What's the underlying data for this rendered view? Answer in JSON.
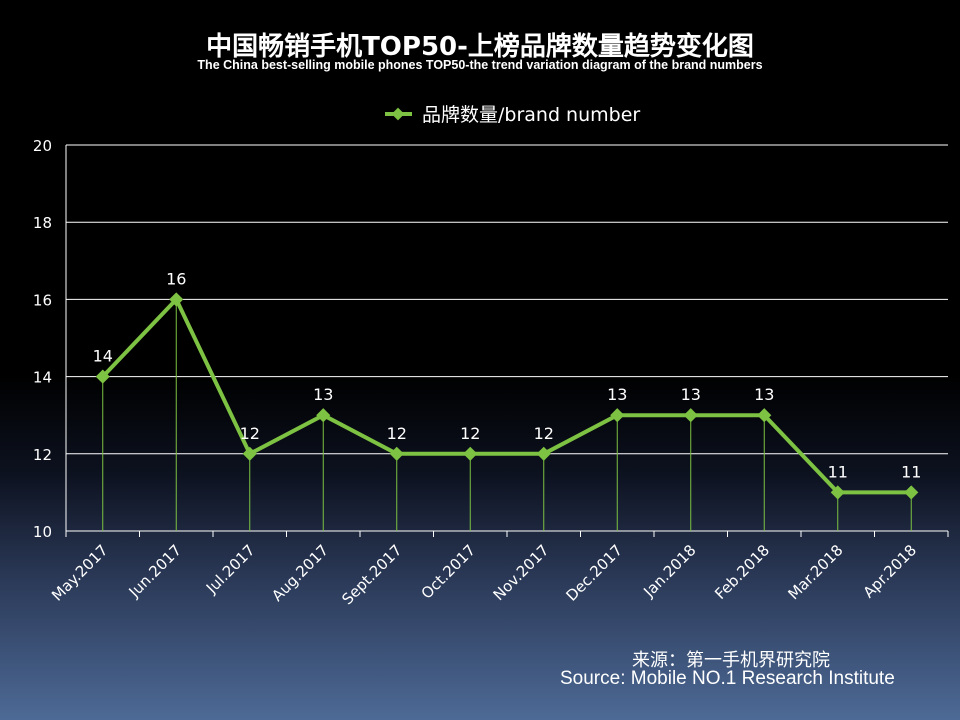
{
  "title": "中国畅销手机TOP50-上榜品牌数量趋势变化图",
  "subtitle": "The China best-selling mobile phones TOP50-the trend variation diagram of the brand numbers",
  "source_cn": "来源：第一手机界研究院",
  "source_en": "Source: Mobile NO.1 Research Institute",
  "colors": {
    "line": "#7dc242",
    "grid": "#ffffff",
    "text": "#ffffff",
    "background": "#000000"
  },
  "chart_data": {
    "type": "line",
    "categories": [
      "May.2017",
      "Jun.2017",
      "Jul.2017",
      "Aug.2017",
      "Sept.2017",
      "Oct.2017",
      "Nov.2017",
      "Dec.2017",
      "Jan.2018",
      "Feb.2018",
      "Mar.2018",
      "Apr.2018"
    ],
    "series": [
      {
        "name": "品牌数量/brand number",
        "values": [
          14,
          16,
          12,
          13,
          12,
          12,
          12,
          13,
          13,
          13,
          11,
          11
        ]
      }
    ],
    "ylim": [
      10,
      20
    ],
    "yticks": [
      "10",
      "12",
      "14",
      "16",
      "18",
      "20"
    ],
    "data_labels": [
      "14",
      "16",
      "12",
      "13",
      "12",
      "12",
      "12",
      "13",
      "13",
      "13",
      "11",
      "11"
    ],
    "grid": true,
    "legend": "top-center",
    "marker": "diamond"
  }
}
